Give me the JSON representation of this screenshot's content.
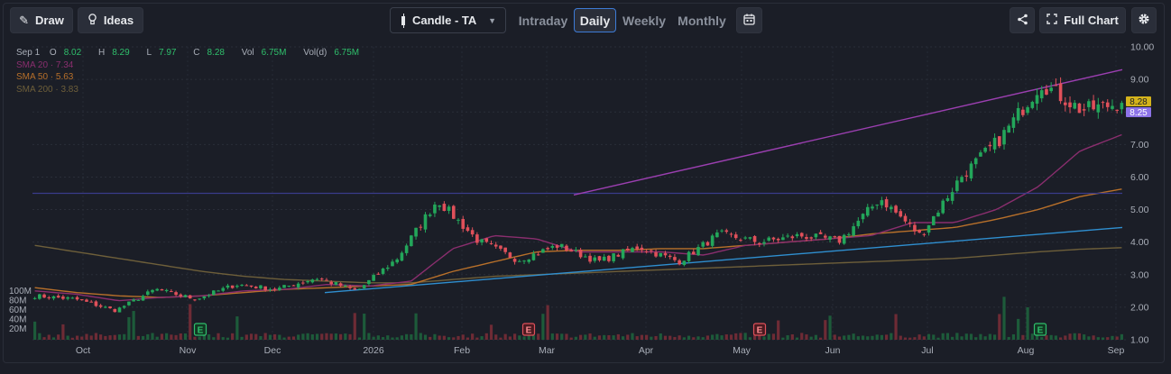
{
  "toolbar": {
    "draw_label": "Draw",
    "ideas_label": "Ideas",
    "chart_type_label": "Candle - TA",
    "periods": [
      "Intraday",
      "Daily",
      "Weekly",
      "Monthly"
    ],
    "active_period": "Daily",
    "full_chart_label": "Full Chart"
  },
  "legend": {
    "date": "Sep 1",
    "open_label": "O",
    "open": "8.02",
    "high_label": "H",
    "high": "8.29",
    "low_label": "L",
    "low": "7.97",
    "close_label": "C",
    "close": "8.28",
    "vol_label": "Vol",
    "vol": "6.75M",
    "vold_label": "Vol(d)",
    "vold": "6.75M",
    "sma20": "SMA 20 · 7.34",
    "sma50": "SMA 50 · 5.63",
    "sma200": "SMA 200 · 3.83"
  },
  "colors": {
    "up": "#23a65a",
    "down": "#e0505a",
    "sma20": "#8a2e6e",
    "sma50": "#b8702a",
    "sma200": "#6e5f3a",
    "trend_upper": "#9b3fb0",
    "trend_lower": "#2f8fd0",
    "hline": "#3a3b8a",
    "last_price_bg": "#d4b31c",
    "sma_price_bg": "#8d73e8"
  },
  "chart_data": {
    "type": "candlestick",
    "y_ticks": [
      "10.00",
      "9.00",
      "8.00",
      "7.00",
      "6.00",
      "5.00",
      "4.00",
      "3.00",
      "2.00",
      "1.00"
    ],
    "ylim": [
      1.0,
      10.0
    ],
    "x_ticks": [
      "Oct",
      "Nov",
      "Dec",
      "2026",
      "Feb",
      "Mar",
      "Apr",
      "May",
      "Jun",
      "Jul",
      "Aug",
      "Sep"
    ],
    "volume_ticks": [
      "100M",
      "80M",
      "60M",
      "40M",
      "20M"
    ],
    "last_price_label": "8.28",
    "sma_price_label": "8.25",
    "earnings_marker": "E",
    "earnings_markers": [
      {
        "month": "Nov",
        "color": "green"
      },
      {
        "month": "Mar",
        "color": "red"
      },
      {
        "month": "May",
        "color": "red"
      },
      {
        "month": "Aug",
        "color": "green"
      }
    ],
    "horizontal_line_value": 5.5,
    "price_keypoints": [
      {
        "label": "Sep",
        "close": 2.35
      },
      {
        "label": "Oct",
        "close": 2.25
      },
      {
        "label": "Nov",
        "close": 1.9
      },
      {
        "label": "Nov",
        "close": 2.55
      },
      {
        "label": "Dec",
        "close": 2.25
      },
      {
        "label": "Dec",
        "close": 2.7
      },
      {
        "label": "2026",
        "close": 2.55
      },
      {
        "label": "Feb",
        "close": 2.9
      },
      {
        "label": "Feb",
        "close": 2.5
      },
      {
        "label": "Mar",
        "close": 3.5
      },
      {
        "label": "Mar",
        "close": 5.3
      },
      {
        "label": "Mar",
        "close": 4.05
      },
      {
        "label": "Apr",
        "close": 3.45
      },
      {
        "label": "Apr",
        "close": 3.9
      },
      {
        "label": "May",
        "close": 3.4
      },
      {
        "label": "May",
        "close": 3.85
      },
      {
        "label": "May",
        "close": 3.4
      },
      {
        "label": "Jun",
        "close": 4.25
      },
      {
        "label": "Jun",
        "close": 4.0
      },
      {
        "label": "Jul",
        "close": 4.2
      },
      {
        "label": "Jul",
        "close": 4.05
      },
      {
        "label": "Jul",
        "close": 5.35
      },
      {
        "label": "Aug",
        "close": 4.2
      },
      {
        "label": "Aug",
        "close": 6.0
      },
      {
        "label": "Aug",
        "close": 7.2
      },
      {
        "label": "Aug",
        "close": 8.9
      },
      {
        "label": "Sep",
        "close": 8.05
      },
      {
        "label": "Sep",
        "close": 8.28
      }
    ],
    "sma20_keypoints": [
      2.5,
      2.4,
      2.2,
      2.3,
      2.35,
      2.5,
      2.55,
      2.7,
      2.65,
      2.8,
      3.8,
      4.2,
      4.1,
      3.7,
      3.7,
      3.7,
      3.6,
      3.9,
      4.0,
      4.1,
      4.2,
      4.6,
      4.6,
      5.0,
      5.7,
      6.8,
      7.3
    ],
    "sma50_keypoints": [
      2.6,
      2.45,
      2.35,
      2.3,
      2.35,
      2.45,
      2.55,
      2.6,
      2.65,
      2.7,
      3.1,
      3.4,
      3.7,
      3.75,
      3.75,
      3.8,
      3.8,
      3.9,
      4.0,
      4.1,
      4.25,
      4.35,
      4.45,
      4.7,
      5.0,
      5.4,
      5.63
    ],
    "sma200_keypoints": [
      3.9,
      3.7,
      3.5,
      3.3,
      3.1,
      2.95,
      2.85,
      2.8,
      2.75,
      2.75,
      2.85,
      2.95,
      3.0,
      3.05,
      3.1,
      3.15,
      3.2,
      3.25,
      3.3,
      3.35,
      3.4,
      3.45,
      3.5,
      3.6,
      3.7,
      3.78,
      3.83
    ]
  }
}
